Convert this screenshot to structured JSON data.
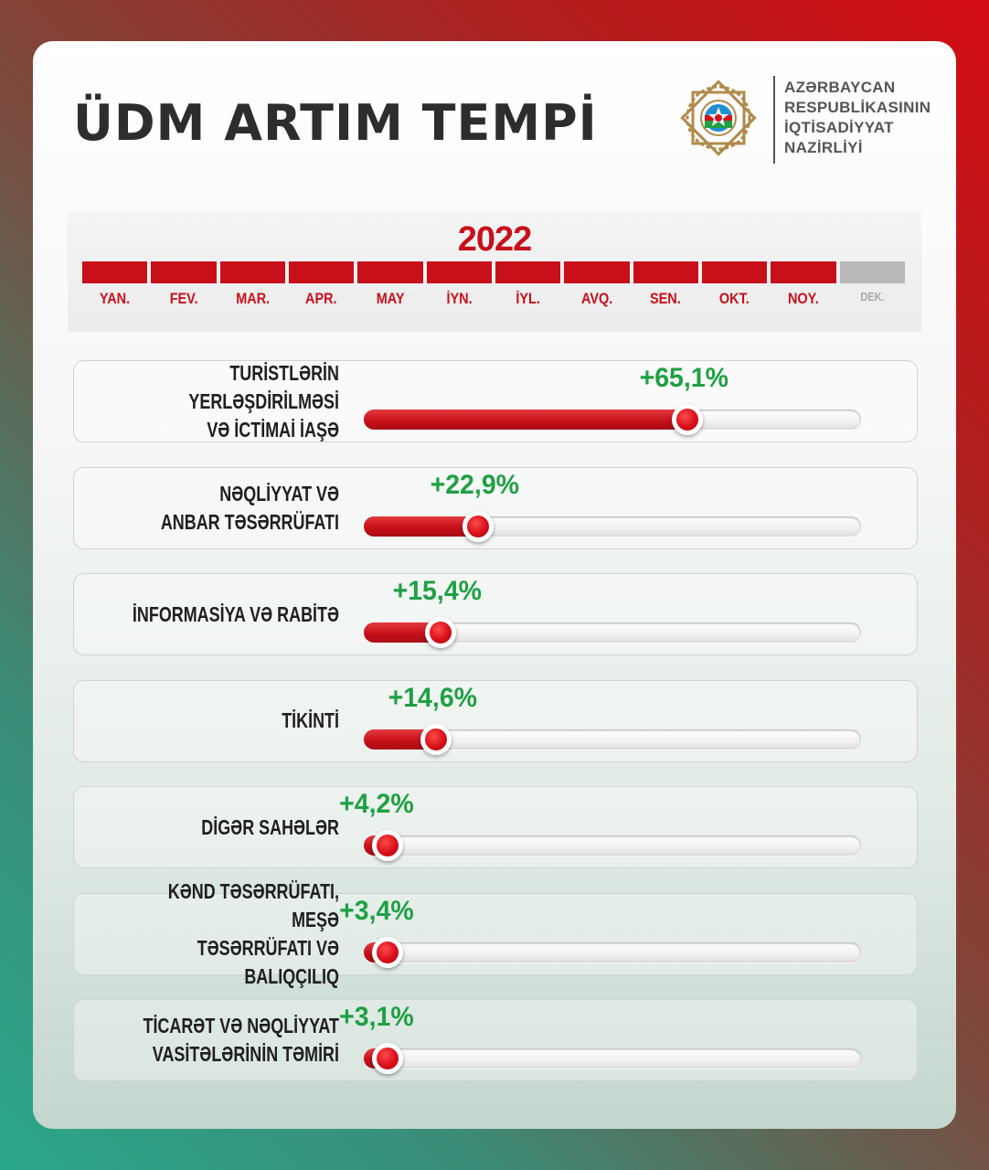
{
  "title": "ÜDM ARTIM TEMPİ",
  "ministry": {
    "name_lines": [
      "AZƏRBAYCAN",
      "RESPUBLİKASININ",
      "İQTİSADİYYAT",
      "NAZİRLİYİ"
    ]
  },
  "timeline": {
    "year": "2022",
    "months": [
      {
        "label": "YAN.",
        "active": true
      },
      {
        "label": "FEV.",
        "active": true
      },
      {
        "label": "MAR.",
        "active": true
      },
      {
        "label": "APR.",
        "active": true
      },
      {
        "label": "MAY",
        "active": true
      },
      {
        "label": "İYN.",
        "active": true
      },
      {
        "label": "İYL.",
        "active": true
      },
      {
        "label": "AVQ.",
        "active": true
      },
      {
        "label": "SEN.",
        "active": true
      },
      {
        "label": "OKT.",
        "active": true
      },
      {
        "label": "NOY.",
        "active": true
      },
      {
        "label": "DEK.",
        "active": false
      }
    ]
  },
  "colors": {
    "accent_red": "#c8101a",
    "value_green": "#1fa043"
  },
  "chart_data": {
    "type": "bar",
    "title": "ÜDM ARTIM TEMPİ",
    "xlabel": "",
    "ylabel": "",
    "ylim": [
      0,
      100
    ],
    "categories": [
      "TURİSTLƏRİN YERLƏŞDİRİLMƏSİ\nVƏ İCTİMAİ İAŞƏ",
      "NƏQLİYYAT VƏ\nANBAR TƏSƏRRÜFATI",
      "İNFORMASİYA VƏ RABİTƏ",
      "TİKİNTİ",
      "DİGƏR SAHƏLƏR",
      "KƏND TƏSƏRRÜFATI, MEŞƏ\nTƏSƏRRÜFATI VƏ BALIQÇILIQ",
      "TİCARƏT VƏ NƏQLİYYAT\nVASİTƏLƏRİNİN TƏMİRİ"
    ],
    "values": [
      65.1,
      22.9,
      15.4,
      14.6,
      4.2,
      3.4,
      3.1
    ],
    "value_labels": [
      "+65,1%",
      "+22,9%",
      "+15,4%",
      "+14,6%",
      "+4,2%",
      "+3,4%",
      "+3,1%"
    ]
  }
}
